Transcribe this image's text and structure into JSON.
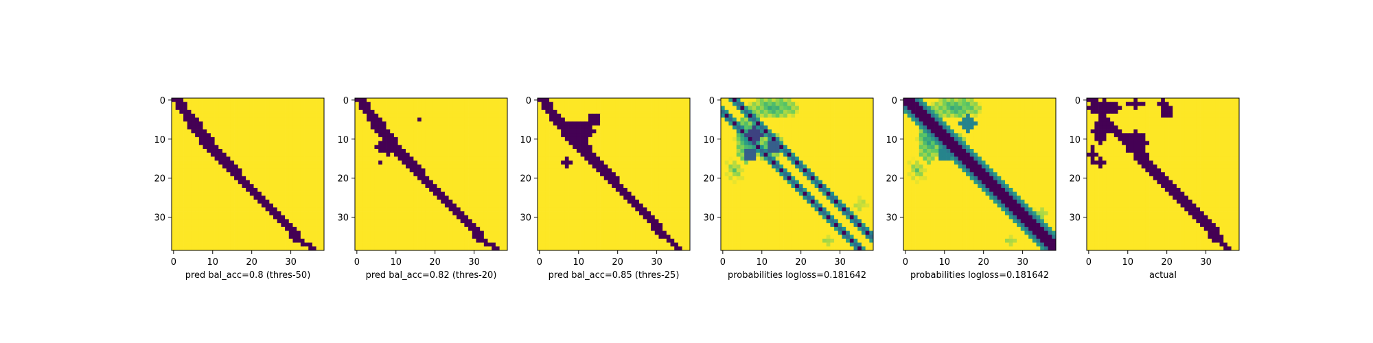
{
  "figure": {
    "background": "#ffffff",
    "colormap": "viridis",
    "colors": {
      "low": "#440154",
      "mid": "#21918c",
      "high": "#fde725"
    }
  },
  "chart_data": [
    {
      "type": "heatmap",
      "xlabel": "pred bal_acc=0.8 (thres-50)",
      "grid_size": 39,
      "xticks": [
        "0",
        "10",
        "20",
        "30"
      ],
      "yticks": [
        "0",
        "10",
        "20",
        "30"
      ],
      "xlim": [
        -0.5,
        38.5
      ],
      "ylim": [
        38.5,
        -0.5
      ],
      "binary": true,
      "band": [
        [
          0,
          0,
          3
        ],
        [
          3,
          1,
          3
        ],
        [
          5,
          2,
          4
        ],
        [
          8,
          3,
          4
        ],
        [
          12,
          4,
          4
        ],
        [
          16,
          4,
          4
        ],
        [
          20,
          4,
          3
        ],
        [
          24,
          4,
          3
        ],
        [
          28,
          4,
          3
        ],
        [
          32,
          4,
          3
        ],
        [
          36,
          5,
          3
        ],
        [
          38,
          3,
          2
        ]
      ],
      "blobs": []
    },
    {
      "type": "heatmap",
      "xlabel": "pred bal_acc=0.82 (thres-20)",
      "grid_size": 39,
      "xticks": [
        "0",
        "10",
        "20",
        "30"
      ],
      "yticks": [
        "0",
        "10",
        "20",
        "30"
      ],
      "xlim": [
        -0.5,
        38.5
      ],
      "ylim": [
        38.5,
        -0.5
      ],
      "binary": true,
      "band": [
        [
          0,
          0,
          3
        ],
        [
          3,
          1,
          3
        ],
        [
          5,
          2,
          4
        ],
        [
          8,
          3,
          4
        ],
        [
          12,
          4,
          4
        ],
        [
          16,
          4,
          4
        ],
        [
          20,
          4,
          3
        ],
        [
          24,
          4,
          3
        ],
        [
          28,
          4,
          3
        ],
        [
          32,
          4,
          3
        ],
        [
          36,
          5,
          3
        ],
        [
          38,
          3,
          2
        ]
      ],
      "blobs": [
        [
          8,
          12,
          3,
          2
        ],
        [
          16,
          5,
          0.6,
          0.6
        ],
        [
          6,
          16,
          0.6,
          0.6
        ]
      ]
    },
    {
      "type": "heatmap",
      "xlabel": "pred bal_acc=0.85 (thres-25)",
      "grid_size": 39,
      "xticks": [
        "0",
        "10",
        "20",
        "30"
      ],
      "yticks": [
        "0",
        "10",
        "20",
        "30"
      ],
      "xlim": [
        -0.5,
        38.5
      ],
      "ylim": [
        38.5,
        -0.5
      ],
      "binary": true,
      "band": [
        [
          0,
          0,
          3
        ],
        [
          3,
          1,
          3
        ],
        [
          6,
          2,
          4
        ],
        [
          10,
          3,
          5
        ],
        [
          14,
          3,
          4
        ],
        [
          18,
          3,
          4
        ],
        [
          22,
          3,
          3
        ],
        [
          26,
          3,
          3
        ],
        [
          30,
          3,
          3
        ],
        [
          34,
          4,
          3
        ],
        [
          38,
          3,
          2
        ]
      ],
      "blobs": [
        [
          10,
          8,
          4,
          2.5
        ],
        [
          14,
          5,
          1.5,
          1.5
        ],
        [
          7,
          16,
          1.5,
          1
        ]
      ]
    },
    {
      "type": "heatmap",
      "xlabel": "probabilities logloss=0.181642",
      "grid_size": 39,
      "xticks": [
        "0",
        "10",
        "20",
        "30"
      ],
      "yticks": [
        "0",
        "10",
        "20",
        "30"
      ],
      "xlim": [
        -0.5,
        38.5
      ],
      "ylim": [
        38.5,
        -0.5
      ],
      "binary": false,
      "diagonals": [
        -3,
        3
      ],
      "diagonal_value": 0.0,
      "diagonal_halo": 0.45,
      "greens": [
        [
          13,
          2,
          7,
          3,
          0.55
        ],
        [
          6,
          10,
          3,
          6,
          0.5
        ],
        [
          12,
          12,
          4,
          4,
          0.6
        ],
        [
          3,
          18,
          3,
          4,
          0.7
        ],
        [
          35,
          27,
          3,
          3,
          0.75
        ],
        [
          27,
          36,
          3,
          2,
          0.75
        ]
      ],
      "blobs": [
        [
          8,
          9,
          2,
          2,
          0.2
        ],
        [
          13,
          12,
          1.5,
          1.5,
          0.3
        ],
        [
          7,
          14,
          1.5,
          1.5,
          0.3
        ]
      ]
    },
    {
      "type": "heatmap",
      "xlabel": "probabilities logloss=0.181642",
      "grid_size": 39,
      "xticks": [
        "0",
        "10",
        "20",
        "30"
      ],
      "yticks": [
        "0",
        "10",
        "20",
        "30"
      ],
      "xlim": [
        -0.5,
        38.5
      ],
      "ylim": [
        38.5,
        -0.5
      ],
      "binary": false,
      "band_width": 2.2,
      "band_halo": 1.6,
      "greens": [
        [
          13,
          2,
          7,
          3,
          0.55
        ],
        [
          6,
          10,
          3,
          6,
          0.5
        ],
        [
          12,
          12,
          4,
          4,
          0.6
        ],
        [
          3,
          18,
          3,
          4,
          0.7
        ],
        [
          35,
          29,
          3,
          3,
          0.75
        ],
        [
          27,
          36,
          3,
          2,
          0.75
        ]
      ],
      "blobs": [
        [
          16,
          6,
          2,
          2,
          0.45
        ],
        [
          10,
          14,
          1.5,
          1.5,
          0.45
        ]
      ]
    },
    {
      "type": "heatmap",
      "xlabel": "actual",
      "grid_size": 39,
      "xticks": [
        "0",
        "10",
        "20",
        "30"
      ],
      "yticks": [
        "0",
        "10",
        "20",
        "30"
      ],
      "xlim": [
        -0.5,
        38.5
      ],
      "ylim": [
        38.5,
        -0.5
      ],
      "binary": true,
      "band": [
        [
          0,
          0,
          3
        ],
        [
          4,
          1,
          2
        ],
        [
          8,
          2,
          3
        ],
        [
          12,
          2,
          4
        ],
        [
          16,
          3,
          4
        ],
        [
          20,
          3,
          4
        ],
        [
          24,
          3,
          4
        ],
        [
          28,
          3,
          4
        ],
        [
          32,
          3,
          4
        ],
        [
          36,
          4,
          3
        ],
        [
          38,
          3,
          2
        ]
      ],
      "blobs": [
        [
          4,
          2,
          4,
          2
        ],
        [
          12,
          11,
          3,
          3
        ],
        [
          3,
          8,
          2,
          3
        ],
        [
          1,
          14,
          1,
          2
        ],
        [
          3,
          16,
          1.5,
          1.2
        ],
        [
          12,
          1,
          2,
          1
        ],
        [
          19,
          1,
          1.5,
          1
        ],
        [
          20,
          3,
          1.5,
          1.5
        ]
      ]
    }
  ]
}
